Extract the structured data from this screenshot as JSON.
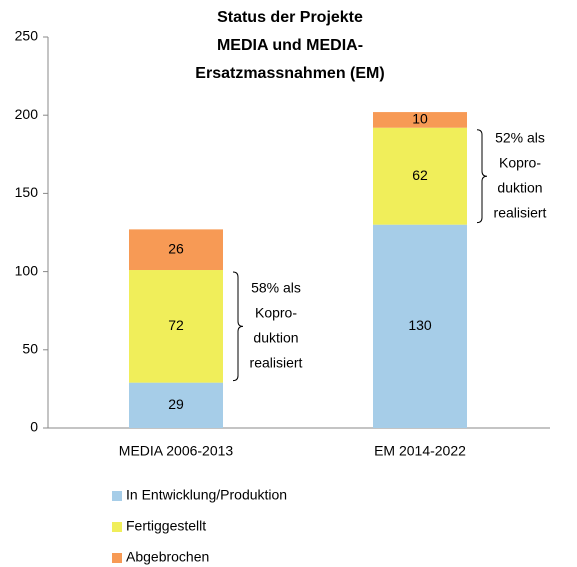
{
  "chart_data": {
    "type": "stacked_bar",
    "title": [
      "Status der Projekte",
      "MEDIA und MEDIA-",
      "Ersatzmassnahmen (EM)"
    ],
    "categories": [
      "MEDIA 2006-2013",
      "EM 2014-2022"
    ],
    "series": [
      {
        "name": "In Entwicklung/Produktion",
        "color": "#a6cde8",
        "values": [
          29,
          130
        ]
      },
      {
        "name": "Fertiggestellt",
        "color": "#f0ee5a",
        "values": [
          72,
          62
        ]
      },
      {
        "name": "Abgebrochen",
        "color": "#f79a55",
        "values": [
          26,
          10
        ]
      }
    ],
    "ylim": [
      0,
      250
    ],
    "yticks": [
      0,
      50,
      100,
      150,
      200,
      250
    ],
    "annotations": [
      {
        "lines": [
          "58% als",
          "Kopro-",
          "duktion",
          "realisiert"
        ]
      },
      {
        "lines": [
          "52% als",
          "Kopro-",
          "duktion",
          "realisiert"
        ]
      }
    ],
    "legend": "bottom"
  }
}
